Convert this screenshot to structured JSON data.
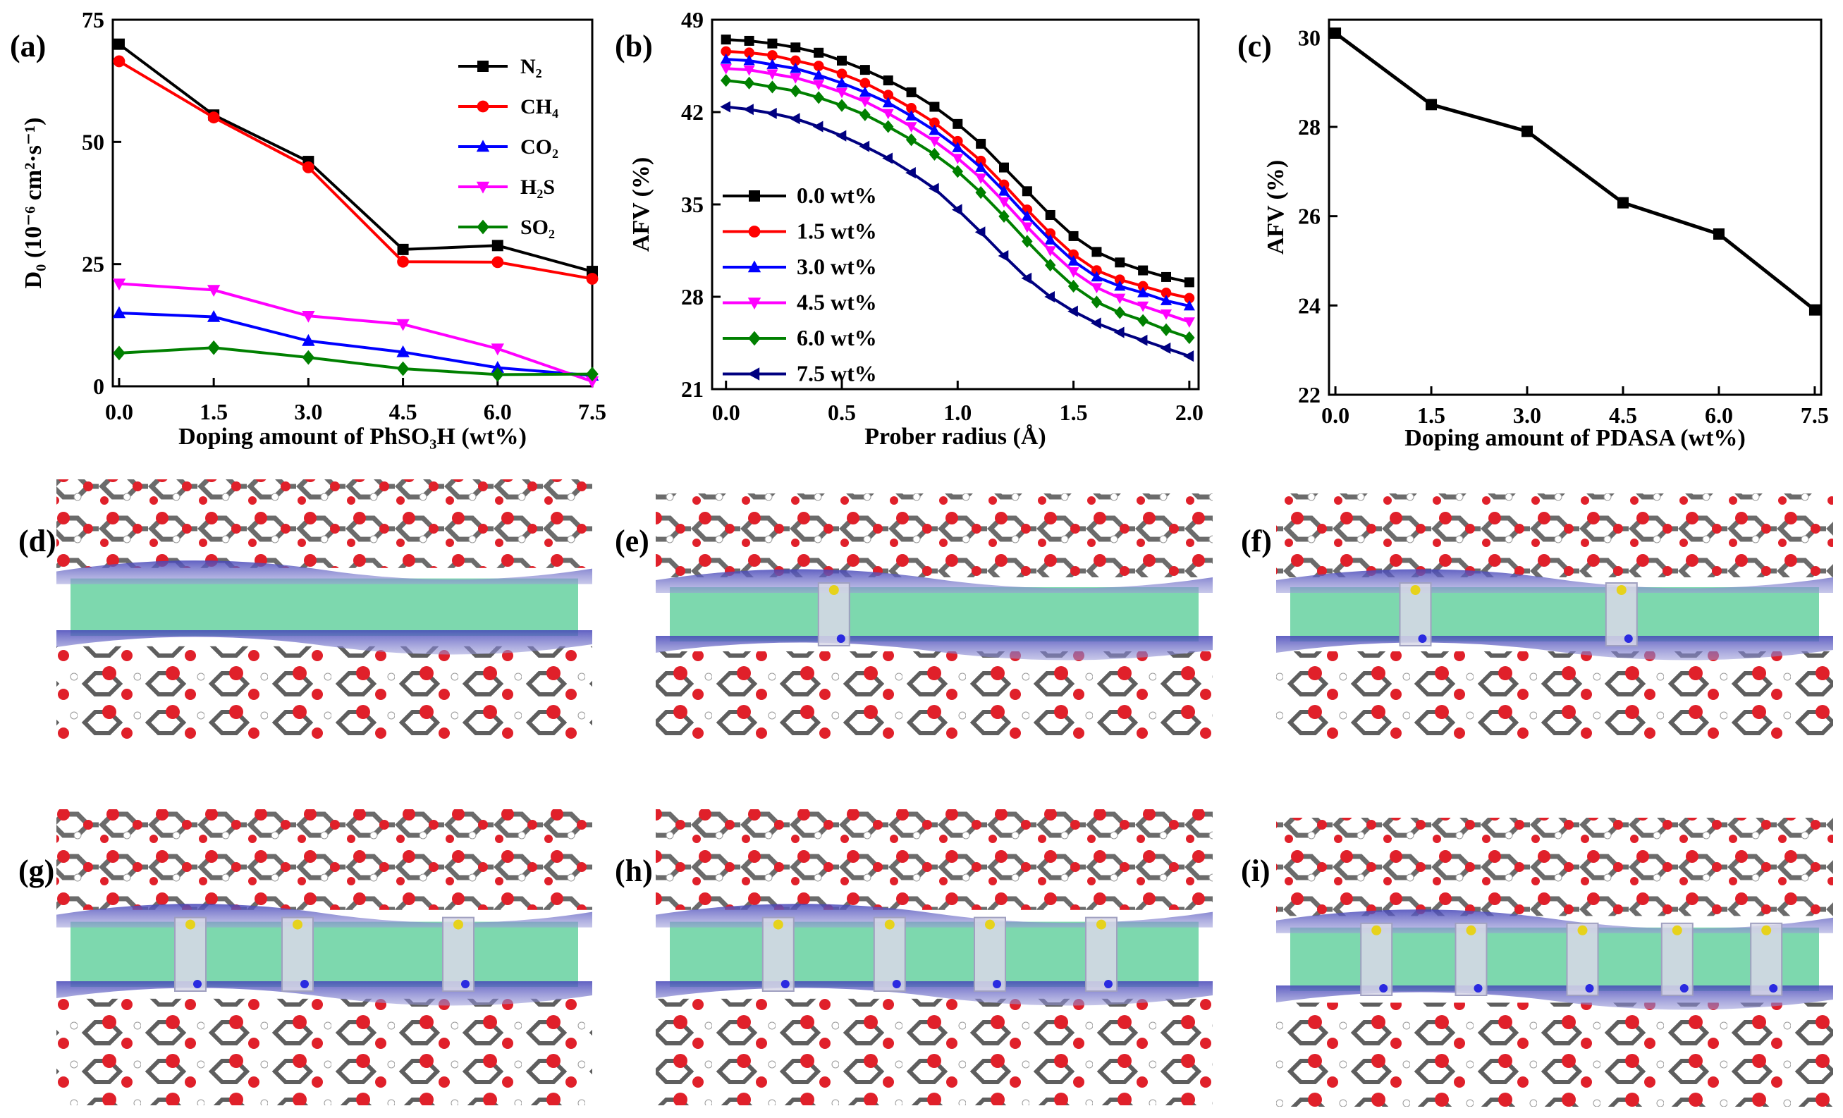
{
  "panel_labels": {
    "a": "(a)",
    "b": "(b)",
    "c": "(c)",
    "d": "(d)",
    "e": "(e)",
    "f": "(f)",
    "g": "(g)",
    "h": "(h)",
    "i": "(i)"
  },
  "colors": {
    "black": "#000000",
    "red": "#ff0000",
    "blue": "#0000ff",
    "magenta": "#ff00ff",
    "green": "#008000",
    "navy": "#000080",
    "slab_green": "#7dd8ae",
    "surface_blue": "#5a5ac8",
    "atom_red": "#e0202a",
    "bond_gray": "#6b6b6b"
  },
  "chart_data": [
    {
      "id": "a",
      "type": "line",
      "xlabel": "Doping amount of PhSO₃H (wt%)",
      "ylabel": "D₀ (10⁻⁶ cm²·s⁻¹)",
      "x": [
        0.0,
        1.5,
        3.0,
        4.5,
        6.0,
        7.5
      ],
      "xlim": [
        -0.1,
        7.5
      ],
      "ylim": [
        0,
        75
      ],
      "xticks": [
        "0.0",
        "1.5",
        "3.0",
        "4.5",
        "6.0",
        "7.5"
      ],
      "yticks": [
        "0",
        "25",
        "50",
        "75"
      ],
      "series": [
        {
          "name": "N₂",
          "color": "#000000",
          "marker": "square",
          "values": [
            70.0,
            55.5,
            46.0,
            28.0,
            28.8,
            23.5
          ]
        },
        {
          "name": "CH₄",
          "color": "#ff0000",
          "marker": "circle",
          "values": [
            66.5,
            55.0,
            44.8,
            25.5,
            25.4,
            22.0
          ]
        },
        {
          "name": "CO₂",
          "color": "#0000ff",
          "marker": "triangle-up",
          "values": [
            15.0,
            14.2,
            9.3,
            7.0,
            3.8,
            2.2
          ]
        },
        {
          "name": "H₂S",
          "color": "#ff00ff",
          "marker": "triangle-down",
          "values": [
            21.0,
            19.7,
            14.4,
            12.7,
            7.7,
            1.0
          ]
        },
        {
          "name": "SO₂",
          "color": "#008000",
          "marker": "diamond",
          "values": [
            6.8,
            7.9,
            5.9,
            3.6,
            2.4,
            2.5
          ]
        }
      ],
      "legend_position": "top-right"
    },
    {
      "id": "b",
      "type": "line",
      "xlabel": "Prober radius  (Å)",
      "ylabel": "AFV (%)",
      "x": [
        0.0,
        0.1,
        0.2,
        0.3,
        0.4,
        0.5,
        0.6,
        0.7,
        0.8,
        0.9,
        1.0,
        1.1,
        1.2,
        1.3,
        1.4,
        1.5,
        1.6,
        1.7,
        1.8,
        1.9,
        2.0
      ],
      "xlim": [
        -0.06,
        2.04
      ],
      "ylim": [
        21,
        49
      ],
      "xticks": [
        "0.0",
        "0.5",
        "1.0",
        "1.5",
        "2.0"
      ],
      "yticks": [
        "21",
        "28",
        "35",
        "42",
        "49"
      ],
      "series": [
        {
          "name": "0.0 wt%",
          "color": "#000000",
          "marker": "square",
          "values": [
            47.5,
            47.4,
            47.2,
            46.9,
            46.5,
            45.9,
            45.2,
            44.4,
            43.5,
            42.4,
            41.1,
            39.6,
            37.8,
            36.0,
            34.2,
            32.6,
            31.4,
            30.6,
            30.0,
            29.5,
            29.1
          ]
        },
        {
          "name": "1.5 wt%",
          "color": "#ff0000",
          "marker": "circle",
          "values": [
            46.6,
            46.5,
            46.3,
            45.9,
            45.5,
            44.9,
            44.2,
            43.3,
            42.3,
            41.2,
            39.8,
            38.3,
            36.5,
            34.6,
            32.8,
            31.2,
            30.0,
            29.3,
            28.8,
            28.3,
            27.9
          ]
        },
        {
          "name": "3.0 wt%",
          "color": "#0000ff",
          "marker": "triangle-up",
          "values": [
            46.0,
            45.9,
            45.6,
            45.3,
            44.8,
            44.2,
            43.5,
            42.7,
            41.7,
            40.6,
            39.3,
            37.8,
            36.0,
            34.1,
            32.3,
            30.7,
            29.5,
            28.8,
            28.3,
            27.7,
            27.3
          ]
        },
        {
          "name": "4.5 wt%",
          "color": "#ff00ff",
          "marker": "triangle-down",
          "values": [
            45.3,
            45.2,
            44.9,
            44.6,
            44.1,
            43.5,
            42.8,
            41.9,
            40.9,
            39.8,
            38.5,
            37.0,
            35.2,
            33.3,
            31.5,
            29.9,
            28.7,
            27.9,
            27.3,
            26.7,
            26.1
          ]
        },
        {
          "name": "6.0 wt%",
          "color": "#008000",
          "marker": "diamond",
          "values": [
            44.4,
            44.2,
            43.9,
            43.6,
            43.1,
            42.5,
            41.8,
            40.9,
            39.9,
            38.8,
            37.5,
            35.9,
            34.1,
            32.2,
            30.4,
            28.8,
            27.6,
            26.8,
            26.2,
            25.5,
            24.9
          ]
        },
        {
          "name": "7.5 wt%",
          "color": "#000080",
          "marker": "triangle-left",
          "values": [
            42.4,
            42.2,
            41.9,
            41.5,
            40.9,
            40.2,
            39.4,
            38.5,
            37.4,
            36.2,
            34.6,
            32.9,
            31.1,
            29.4,
            28.0,
            26.9,
            26.0,
            25.3,
            24.7,
            24.1,
            23.5
          ]
        }
      ],
      "legend_position": "bottom-left"
    },
    {
      "id": "c",
      "type": "line",
      "xlabel": "Doping amount of PDASA (wt%)",
      "ylabel": "AFV (%)",
      "x": [
        0.0,
        1.5,
        3.0,
        4.5,
        6.0,
        7.5
      ],
      "xlim": [
        -0.1,
        7.6
      ],
      "ylim": [
        22,
        30.4
      ],
      "xticks": [
        "0.0",
        "1.5",
        "3.0",
        "4.5",
        "6.0",
        "7.5"
      ],
      "yticks": [
        "22",
        "24",
        "26",
        "28",
        "30"
      ],
      "series": [
        {
          "name": "AFV",
          "color": "#000000",
          "marker": "square",
          "values": [
            30.1,
            28.5,
            27.9,
            26.3,
            25.6,
            23.9
          ]
        }
      ]
    }
  ]
}
